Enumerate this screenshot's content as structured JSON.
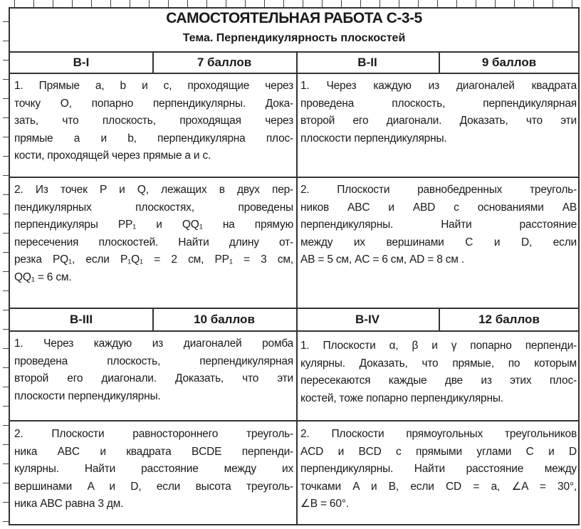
{
  "header": {
    "title": "САМОСТОЯТЕЛЬНАЯ РАБОТА  С-3-5",
    "subtitle": "Тема. Перпендикулярность плоскостей"
  },
  "variants": [
    {
      "name": "В-I",
      "points": "7 баллов",
      "tasks": [
        [
          "1. Прямые a, b и c, проходящие через",
          "точку O, попарно перпендикулярны. Дока-",
          "зать, что плоскость, проходящая через",
          "прямые a и b, перпендикулярна плос-",
          "кости, проходящей через прямые a и c."
        ],
        [
          "2.  Из точек P и Q, лежащих в двух пер-",
          "пендикулярных плоскостях, проведены",
          "перпендикуляры PP₁ и QQ₁ на прямую",
          "пересечения плоскостей. Найти длину от-",
          "резка PQ₁, если P₁Q₁ = 2 см, PP₁ = 3 см,",
          "QQ₁ = 6 см."
        ]
      ]
    },
    {
      "name": "В-II",
      "points": "9 баллов",
      "tasks": [
        [
          "1. Через каждую из диагоналей квадрата",
          "проведена плоскость, перпендикулярная",
          "второй его диагонали. Доказать, что эти",
          "плоскости перпендикулярны."
        ],
        [
          "2. Плоскости равнобедренных треуголь-",
          "ников ABC и ABD с основаниями AB",
          "перпендикулярны.   Найти   расстояние",
          "между их вершинами C и D, если",
          "AB = 5 см, AC = 6 см, AD = 8 см ."
        ]
      ]
    },
    {
      "name": "В-III",
      "points": "10 баллов",
      "tasks": [
        [
          "1. Через каждую из диагоналей ромба",
          "проведена плоскость, перпендикулярная",
          "второй его диагонали. Доказать, что эти",
          "плоскости перпендикулярны."
        ],
        [
          "2. Плоскости равностороннего треуголь-",
          "ника ABC и квадрата BCDE перпенди-",
          "кулярны. Найти расстояние между их",
          "вершинами A и D, если высота треуголь-",
          "ника ABC равна 3 дм."
        ]
      ]
    },
    {
      "name": "В-IV",
      "points": "12 баллов",
      "tasks": [
        [
          "1. Плоскости α, β и γ попарно перпенди-",
          "кулярны. Доказать, что прямые, по которым",
          "пересекаются каждые две из этих плос-",
          "костей, тоже попарно перпендикулярны."
        ],
        [
          "2. Плоскости прямоугольных треугольников",
          "ACD и BCD с прямыми углами C и D",
          "перпендикулярны. Найти расстояние между",
          "точками A и B, если CD = a, ∠A = 30°,",
          "∠B = 60°."
        ]
      ]
    }
  ]
}
